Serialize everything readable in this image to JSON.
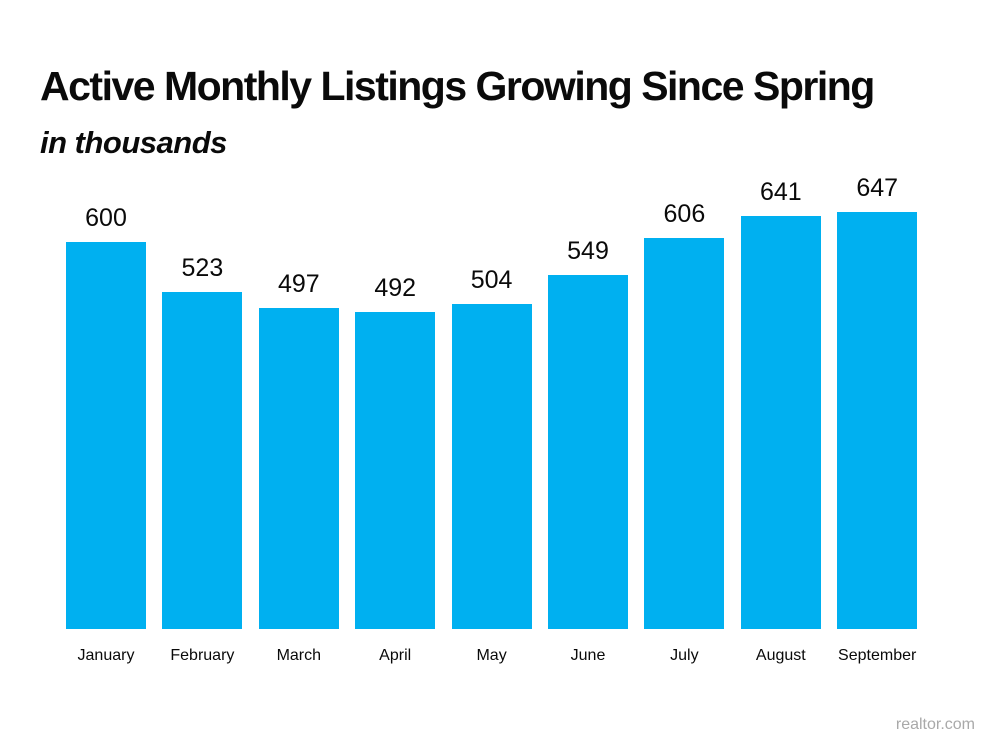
{
  "title": "Active Monthly Listings Growing Since Spring",
  "subtitle": "in thousands",
  "watermark": "realtor.com",
  "colors": {
    "bar": "#00B0F0",
    "text": "#0A0A0A",
    "watermark": "#A9A9A9",
    "background": "#FFFFFF"
  },
  "chart_data": {
    "type": "bar",
    "title": "Active Monthly Listings Growing Since Spring",
    "subtitle": "in thousands",
    "unit": "thousands",
    "categories": [
      "January",
      "February",
      "March",
      "April",
      "May",
      "June",
      "July",
      "August",
      "September"
    ],
    "values": [
      600,
      523,
      497,
      492,
      504,
      549,
      606,
      641,
      647
    ],
    "xlabel": "",
    "ylabel": "",
    "ylim": [
      0,
      650
    ],
    "grid": false,
    "legend": false,
    "axes_visible": false,
    "data_labels": true,
    "bar_color": "#00B0F0",
    "source": "realtor.com"
  }
}
